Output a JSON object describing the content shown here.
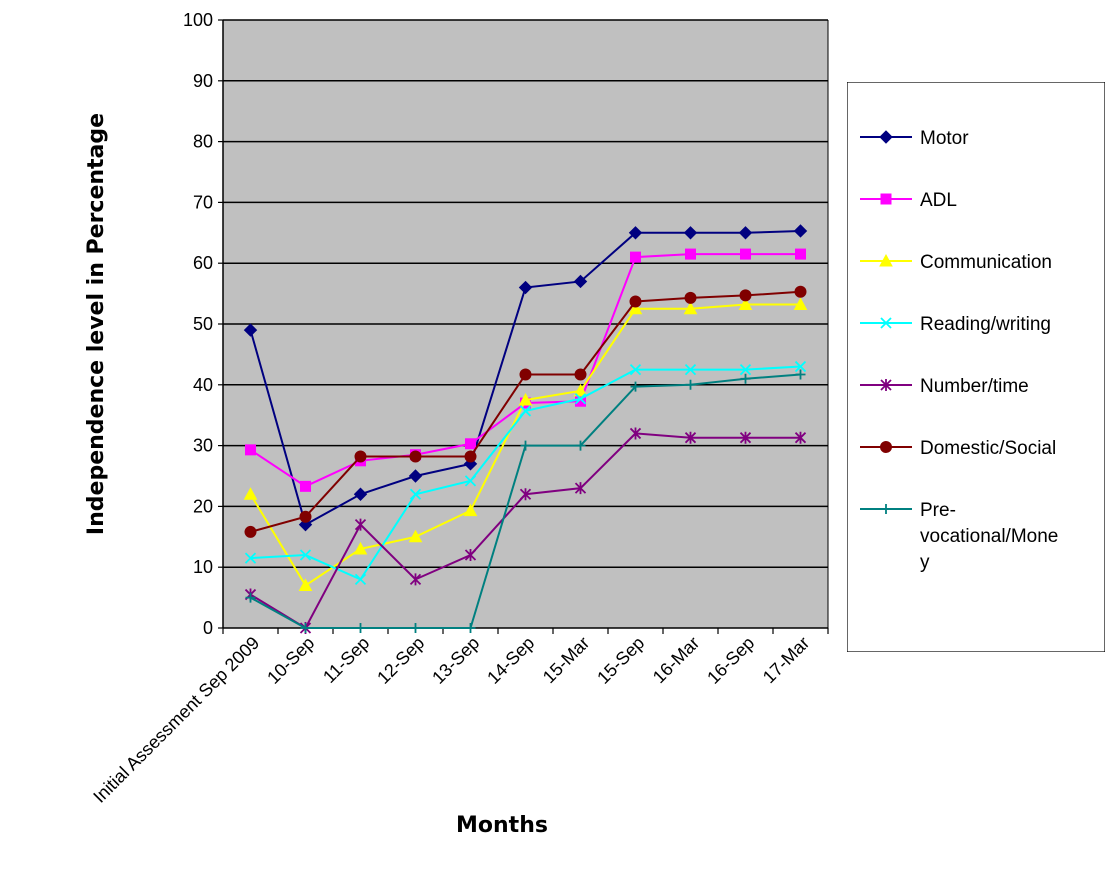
{
  "chart_data": {
    "type": "line",
    "xlabel": "Months",
    "ylabel": "Independence level in Percentage",
    "categories": [
      "Initial Assessment Sep 2009",
      "10-Sep",
      "11-Sep",
      "12-Sep",
      "13-Sep",
      "14-Sep",
      "15-Mar",
      "15-Sep",
      "16-Mar",
      "16-Sep",
      "17-Mar"
    ],
    "ylim": [
      0,
      100
    ],
    "yticks": [
      0,
      10,
      20,
      30,
      40,
      50,
      60,
      70,
      80,
      90,
      100
    ],
    "grid": true,
    "plot_background": "#c0c0c0",
    "legend_position": "right",
    "series": [
      {
        "name": "Motor",
        "color": "#000080",
        "marker": "diamond",
        "values": [
          49,
          17,
          22,
          25,
          27,
          56,
          57,
          65,
          65,
          65,
          65.3
        ]
      },
      {
        "name": "ADL",
        "color": "#ff00ff",
        "marker": "square",
        "values": [
          29.3,
          23.3,
          27.5,
          28.5,
          30.3,
          37,
          37.3,
          61,
          61.5,
          61.5,
          61.5
        ]
      },
      {
        "name": "Communication",
        "color": "#ffff00",
        "marker": "triangle",
        "values": [
          22,
          7,
          13,
          15,
          19.3,
          37.5,
          39,
          52.5,
          52.5,
          53.2,
          53.2
        ]
      },
      {
        "name": "Reading/writing",
        "color": "#00ffff",
        "marker": "x",
        "values": [
          11.5,
          12,
          8,
          22,
          24.2,
          35.7,
          37.7,
          42.5,
          42.5,
          42.5,
          43
        ]
      },
      {
        "name": "Number/time",
        "color": "#800080",
        "marker": "star",
        "values": [
          5.5,
          0,
          17,
          8,
          12,
          22,
          23,
          32,
          31.3,
          31.3,
          31.3
        ]
      },
      {
        "name": "Domestic/Social",
        "color": "#800000",
        "marker": "circle",
        "values": [
          15.8,
          18.3,
          28.2,
          28.2,
          28.2,
          41.7,
          41.7,
          53.7,
          54.3,
          54.7,
          55.3
        ]
      },
      {
        "name": "Pre-vocational/Money",
        "legend_lines": [
          "Pre-",
          "vocational/Mone",
          "y"
        ],
        "color": "#008080",
        "marker": "plus",
        "values": [
          5,
          0,
          0,
          0,
          0,
          30,
          30,
          39.7,
          40,
          41,
          41.7
        ]
      }
    ]
  }
}
